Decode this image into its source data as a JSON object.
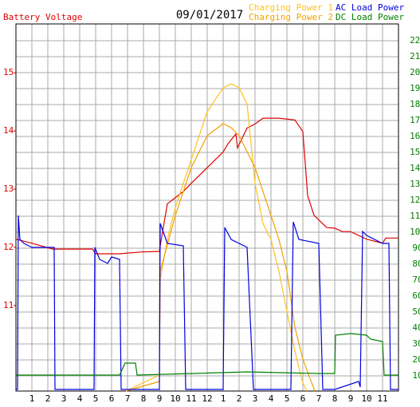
{
  "chart_data": {
    "type": "line",
    "title": "09/01/2017",
    "y_label": "Battery Voltage",
    "xlim": [
      0,
      24
    ],
    "xticks": [
      1,
      2,
      3,
      4,
      5,
      6,
      7,
      8,
      9,
      10,
      11,
      12,
      {
        "value": 13,
        "label": "1"
      },
      {
        "value": 14,
        "label": "2"
      },
      {
        "value": 15,
        "label": "3"
      },
      {
        "value": 16,
        "label": "4"
      },
      {
        "value": 17,
        "label": "5"
      },
      {
        "value": 18,
        "label": "6"
      },
      {
        "value": 19,
        "label": "7"
      },
      {
        "value": 20,
        "label": "8"
      },
      {
        "value": 21,
        "label": "9"
      },
      {
        "value": 22,
        "label": "10"
      },
      {
        "value": 23,
        "label": "11"
      }
    ],
    "ylim": [
      9.53,
      15.84
    ],
    "yticks": [
      11,
      12,
      13,
      14,
      15
    ],
    "y2lim": [
      0.5,
      230.5
    ],
    "y2ticks": [
      10,
      20,
      30,
      40,
      50,
      60,
      70,
      80,
      90,
      100,
      110,
      120,
      130,
      140,
      150,
      160,
      170,
      180,
      190,
      200,
      210,
      220
    ],
    "grid": true,
    "y_color": "#e00000",
    "y2_color": "#008000",
    "series": [
      {
        "name": "Battery Voltage",
        "color": "#e00000",
        "axis": "y",
        "x": [
          0,
          1,
          2.3,
          4.8,
          5,
          6.5,
          7.8,
          9,
          9.2,
          9.5,
          10.5,
          11,
          12,
          13,
          13.3,
          13.8,
          13.9,
          14.5,
          15,
          15.5,
          16.5,
          17.5,
          18,
          18.3,
          18.7,
          19.5,
          20,
          20.5,
          21,
          22,
          23,
          23.2,
          24
        ],
        "values": [
          12.14,
          12.07,
          11.97,
          11.97,
          11.89,
          11.89,
          11.92,
          11.93,
          12.27,
          12.75,
          12.96,
          13.1,
          13.37,
          13.64,
          13.78,
          13.95,
          13.71,
          14.05,
          14.12,
          14.22,
          14.22,
          14.19,
          13.99,
          12.89,
          12.55,
          12.34,
          12.33,
          12.27,
          12.27,
          12.14,
          12.07,
          12.16,
          12.16
        ]
      },
      {
        "name": "Charging Power 1",
        "color": "#ffc020",
        "axis": "y2",
        "x": [
          6.9,
          9,
          9.05,
          9.5,
          10,
          11,
          12,
          13,
          13.5,
          14,
          14.5,
          15,
          15.5,
          16,
          16.5,
          17,
          17.5,
          18,
          18.25
        ],
        "values": [
          0.5,
          10.5,
          70.5,
          95.5,
          115.5,
          145.5,
          175.5,
          190.5,
          193,
          190.5,
          180.5,
          130.5,
          105.5,
          95.5,
          75.5,
          50.5,
          25.5,
          5.5,
          0.5
        ]
      },
      {
        "name": "Charging Power 2",
        "color": "#f0a000",
        "axis": "y2",
        "x": [
          6.9,
          9,
          9.05,
          10,
          11,
          12,
          13,
          13.5,
          14,
          14.5,
          15,
          15.5,
          16,
          16.5,
          17,
          17.5,
          18,
          18.75
        ],
        "values": [
          0.5,
          6.5,
          75.5,
          110.5,
          140.5,
          160.5,
          168,
          165.5,
          160.5,
          150.5,
          140.5,
          125.5,
          110.5,
          95.5,
          75.5,
          40.5,
          20.5,
          0.5
        ]
      },
      {
        "name": "AC Load Power",
        "color": "#0000e0",
        "axis": "y2",
        "x": [
          0,
          0.1,
          0.15,
          0.25,
          0.5,
          1,
          2,
          2.4,
          2.45,
          4.9,
          4.95,
          5.25,
          5.75,
          6,
          6.5,
          6.6,
          7,
          8.75,
          9,
          9.05,
          9.5,
          10.5,
          10.65,
          13,
          13.1,
          13.5,
          14.5,
          14.9,
          17.25,
          17.4,
          17.75,
          19,
          19.25,
          20,
          21.5,
          21.6,
          21.75,
          22,
          23,
          23.4,
          23.5,
          24
        ],
        "values": [
          1.5,
          1.5,
          110.5,
          95.5,
          93,
          90.5,
          90.5,
          90.5,
          1.5,
          1.5,
          90.5,
          83,
          80.5,
          84.5,
          83,
          1.5,
          1.5,
          1.5,
          1.5,
          105.5,
          93,
          91.5,
          1.5,
          1.5,
          103,
          95.5,
          90.5,
          1.5,
          1.5,
          106.5,
          95.5,
          93,
          1.5,
          1.5,
          6.5,
          3,
          100.5,
          98,
          93,
          93,
          1.5,
          1.5
        ]
      },
      {
        "name": "DC Load Power",
        "color": "#008000",
        "axis": "y2",
        "x": [
          0,
          6.5,
          6.85,
          7.5,
          7.6,
          14.5,
          19,
          20,
          20.05,
          21,
          22,
          22.25,
          23,
          23.1,
          24
        ],
        "values": [
          10.5,
          10.5,
          18,
          18,
          10.5,
          12.5,
          11.5,
          11.5,
          35.5,
          36.5,
          35.5,
          33,
          31.5,
          10.5,
          10.5
        ]
      }
    ]
  }
}
